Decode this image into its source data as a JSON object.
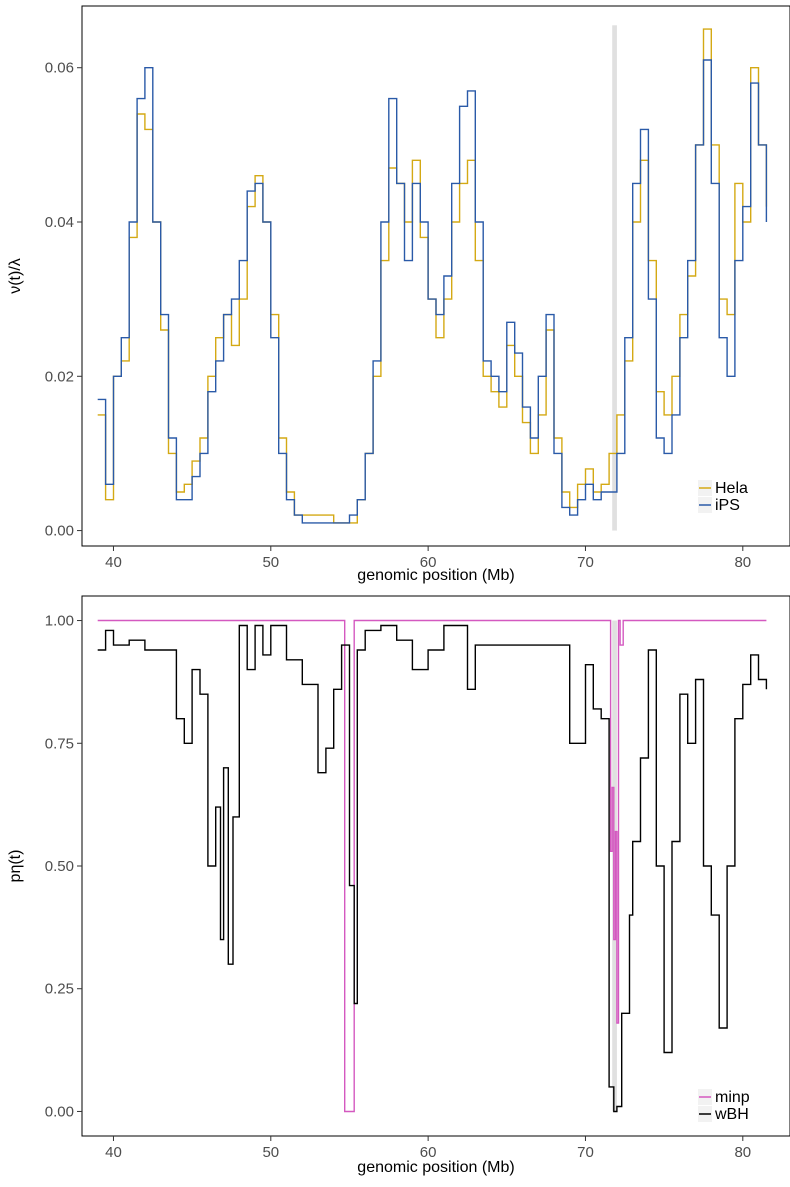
{
  "chart_data": [
    {
      "type": "line",
      "title": "",
      "xlabel": "genomic position (Mb)",
      "ylabel": "ν(t)/λ",
      "xlim": [
        38,
        83
      ],
      "ylim": [
        -0.002,
        0.068
      ],
      "xticks": [
        40,
        50,
        60,
        70,
        80
      ],
      "yticks": [
        0.0,
        0.02,
        0.04,
        0.06
      ],
      "ytick_labels": [
        "0.00",
        "0.02",
        "0.04",
        "0.06"
      ],
      "grid": false,
      "legend_position": "bottom-right",
      "highlight_band": {
        "x": [
          71.7,
          72.0
        ],
        "y": [
          0.0,
          0.0655
        ],
        "color": "#e0e0e0"
      },
      "series": [
        {
          "name": "Hela",
          "color": "#d4a914",
          "x": [
            39.0,
            39.5,
            40.0,
            40.5,
            41.0,
            41.5,
            42.0,
            42.5,
            43.0,
            43.5,
            44.0,
            44.5,
            45.0,
            45.5,
            46.0,
            46.5,
            47.0,
            47.5,
            48.0,
            48.5,
            49.0,
            49.5,
            50.0,
            50.5,
            51.0,
            51.5,
            52.0,
            53.0,
            54.0,
            55.0,
            55.5,
            56.0,
            56.5,
            57.0,
            57.5,
            58.0,
            58.5,
            59.0,
            59.5,
            60.0,
            60.5,
            61.0,
            61.5,
            62.0,
            62.5,
            63.0,
            63.5,
            64.0,
            64.5,
            65.0,
            65.5,
            66.0,
            66.5,
            67.0,
            67.5,
            68.0,
            68.5,
            69.0,
            69.5,
            70.0,
            70.5,
            71.0,
            71.5,
            72.0,
            72.5,
            73.0,
            73.5,
            74.0,
            74.5,
            75.0,
            75.5,
            76.0,
            76.5,
            77.0,
            77.5,
            78.0,
            78.5,
            79.0,
            79.5,
            80.0,
            80.5,
            81.0,
            81.5
          ],
          "values": [
            0.015,
            0.004,
            0.02,
            0.022,
            0.038,
            0.054,
            0.052,
            0.04,
            0.026,
            0.01,
            0.005,
            0.006,
            0.009,
            0.012,
            0.02,
            0.025,
            0.028,
            0.024,
            0.03,
            0.042,
            0.046,
            0.04,
            0.028,
            0.012,
            0.005,
            0.002,
            0.002,
            0.002,
            0.001,
            0.001,
            0.004,
            0.01,
            0.02,
            0.035,
            0.047,
            0.045,
            0.04,
            0.048,
            0.038,
            0.03,
            0.025,
            0.03,
            0.04,
            0.045,
            0.048,
            0.035,
            0.02,
            0.018,
            0.016,
            0.024,
            0.02,
            0.014,
            0.01,
            0.015,
            0.026,
            0.012,
            0.005,
            0.003,
            0.006,
            0.008,
            0.005,
            0.006,
            0.01,
            0.015,
            0.022,
            0.04,
            0.048,
            0.035,
            0.018,
            0.015,
            0.02,
            0.028,
            0.033,
            0.05,
            0.065,
            0.05,
            0.03,
            0.028,
            0.045,
            0.04,
            0.06,
            0.05,
            0.042
          ]
        },
        {
          "name": "iPS",
          "color": "#2a5aa8",
          "x": [
            39.0,
            39.5,
            40.0,
            40.5,
            41.0,
            41.5,
            42.0,
            42.5,
            43.0,
            43.5,
            44.0,
            44.5,
            45.0,
            45.5,
            46.0,
            46.5,
            47.0,
            47.5,
            48.0,
            48.5,
            49.0,
            49.5,
            50.0,
            50.5,
            51.0,
            51.5,
            52.0,
            53.0,
            54.0,
            55.0,
            55.5,
            56.0,
            56.5,
            57.0,
            57.5,
            58.0,
            58.5,
            59.0,
            59.5,
            60.0,
            60.5,
            61.0,
            61.5,
            62.0,
            62.5,
            63.0,
            63.5,
            64.0,
            64.5,
            65.0,
            65.5,
            66.0,
            66.5,
            67.0,
            67.5,
            68.0,
            68.5,
            69.0,
            69.5,
            70.0,
            70.5,
            71.0,
            71.5,
            72.0,
            72.5,
            73.0,
            73.5,
            74.0,
            74.5,
            75.0,
            75.5,
            76.0,
            76.5,
            77.0,
            77.5,
            78.0,
            78.5,
            79.0,
            79.5,
            80.0,
            80.5,
            81.0,
            81.5
          ],
          "values": [
            0.017,
            0.006,
            0.02,
            0.025,
            0.04,
            0.056,
            0.06,
            0.04,
            0.028,
            0.012,
            0.004,
            0.004,
            0.007,
            0.01,
            0.018,
            0.022,
            0.028,
            0.03,
            0.035,
            0.044,
            0.045,
            0.04,
            0.025,
            0.01,
            0.004,
            0.002,
            0.001,
            0.001,
            0.001,
            0.002,
            0.004,
            0.01,
            0.022,
            0.04,
            0.056,
            0.045,
            0.035,
            0.045,
            0.04,
            0.03,
            0.028,
            0.033,
            0.045,
            0.055,
            0.057,
            0.04,
            0.022,
            0.02,
            0.018,
            0.027,
            0.023,
            0.016,
            0.012,
            0.02,
            0.028,
            0.01,
            0.003,
            0.002,
            0.004,
            0.006,
            0.004,
            0.005,
            0.005,
            0.01,
            0.025,
            0.045,
            0.052,
            0.03,
            0.012,
            0.01,
            0.015,
            0.025,
            0.035,
            0.05,
            0.061,
            0.045,
            0.025,
            0.02,
            0.035,
            0.042,
            0.058,
            0.05,
            0.04
          ]
        }
      ]
    },
    {
      "type": "line",
      "title": "",
      "xlabel": "genomic position (Mb)",
      "ylabel": "pη(t)",
      "xlim": [
        38,
        83
      ],
      "ylim": [
        -0.05,
        1.05
      ],
      "xticks": [
        40,
        50,
        60,
        70,
        80
      ],
      "yticks": [
        0.0,
        0.25,
        0.5,
        0.75,
        1.0
      ],
      "ytick_labels": [
        "0.00",
        "0.25",
        "0.50",
        "0.75",
        "1.00"
      ],
      "grid": false,
      "legend_position": "bottom-right",
      "highlight_band": {
        "x": [
          71.7,
          72.0
        ],
        "y": [
          0.0,
          1.0
        ],
        "color": "#e0e0e0"
      },
      "series": [
        {
          "name": "minp",
          "color": "#d459c0",
          "x": [
            39.0,
            54.5,
            54.7,
            55.2,
            55.3,
            71.5,
            71.6,
            71.7,
            71.8,
            71.9,
            72.0,
            72.1,
            72.2,
            72.4,
            81.5
          ],
          "values": [
            1.0,
            1.0,
            0.0,
            0.0,
            1.0,
            1.0,
            0.53,
            0.66,
            0.35,
            0.57,
            0.18,
            1.0,
            0.95,
            1.0,
            1.0
          ]
        },
        {
          "name": "wBH",
          "color": "#000000",
          "x": [
            39.0,
            39.5,
            40.0,
            41.0,
            42.0,
            43.0,
            43.5,
            44.0,
            44.5,
            45.0,
            45.5,
            46.0,
            46.5,
            46.8,
            47.0,
            47.3,
            47.6,
            48.0,
            48.5,
            49.0,
            49.5,
            50.0,
            51.0,
            52.0,
            53.0,
            53.5,
            54.0,
            54.5,
            55.0,
            55.3,
            55.5,
            56.0,
            57.0,
            58.0,
            59.0,
            60.0,
            61.0,
            62.0,
            62.5,
            63.0,
            63.5,
            64.0,
            65.0,
            66.0,
            67.0,
            68.0,
            69.0,
            70.0,
            70.5,
            71.0,
            71.5,
            71.8,
            72.0,
            72.3,
            72.8,
            73.0,
            73.5,
            74.0,
            74.5,
            75.0,
            75.5,
            76.0,
            76.5,
            77.0,
            77.5,
            78.0,
            78.5,
            79.0,
            79.5,
            80.0,
            80.5,
            81.0,
            81.5
          ],
          "values": [
            0.94,
            0.98,
            0.95,
            0.96,
            0.94,
            0.94,
            0.94,
            0.8,
            0.75,
            0.9,
            0.85,
            0.5,
            0.62,
            0.35,
            0.7,
            0.3,
            0.6,
            0.99,
            0.9,
            0.99,
            0.93,
            0.99,
            0.92,
            0.87,
            0.69,
            0.74,
            0.86,
            0.95,
            0.46,
            0.22,
            0.94,
            0.98,
            0.99,
            0.96,
            0.9,
            0.94,
            0.99,
            0.99,
            0.86,
            0.95,
            0.95,
            0.95,
            0.95,
            0.95,
            0.95,
            0.95,
            0.75,
            0.91,
            0.82,
            0.8,
            0.05,
            0.0,
            0.01,
            0.2,
            0.4,
            0.55,
            0.72,
            0.94,
            0.5,
            0.12,
            0.55,
            0.85,
            0.75,
            0.88,
            0.5,
            0.4,
            0.17,
            0.5,
            0.8,
            0.87,
            0.93,
            0.88,
            0.86
          ]
        }
      ]
    }
  ]
}
